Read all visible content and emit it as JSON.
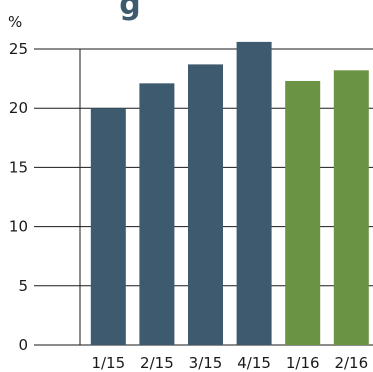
{
  "title_fragment": "g",
  "colors": {
    "bar_dark": "#3e5a6e",
    "bar_green": "#6a9343",
    "grid": "#1a1a1a",
    "text": "#1a1a1a",
    "title": "#3e5a6e"
  },
  "chart_data": {
    "type": "bar",
    "title": "",
    "xlabel": "",
    "ylabel": "%",
    "ylim": [
      0,
      25
    ],
    "yticks": [
      0,
      5,
      10,
      15,
      20,
      25
    ],
    "grid": true,
    "categories": [
      "1/15",
      "2/15",
      "3/15",
      "4/15",
      "1/16",
      "2/16"
    ],
    "values": [
      20.0,
      22.1,
      23.7,
      25.6,
      22.3,
      23.2
    ],
    "bar_colors": [
      "#3e5a6e",
      "#3e5a6e",
      "#3e5a6e",
      "#3e5a6e",
      "#6a9343",
      "#6a9343"
    ]
  }
}
